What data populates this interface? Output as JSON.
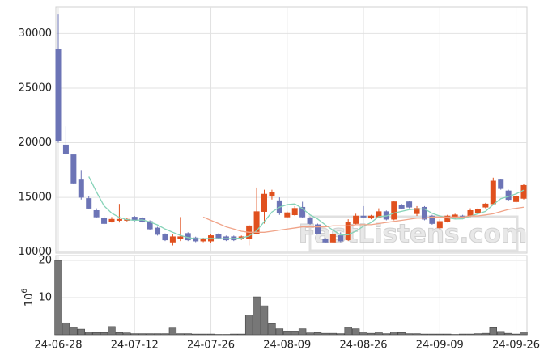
{
  "chart_data": [
    {
      "type": "candlestick",
      "watermark": "FastListens.com",
      "ylim": [
        9900,
        32400
      ],
      "yticks": [
        10000,
        15000,
        20000,
        25000,
        30000
      ],
      "grid": true,
      "up_color": "#e0501e",
      "down_color": "#6c74b6",
      "open": [
        28600,
        19800,
        18900,
        16600,
        14900,
        13800,
        13100,
        12800,
        12900,
        12900,
        13200,
        13100,
        12800,
        12200,
        11600,
        10900,
        11200,
        11700,
        11300,
        11000,
        11000,
        11600,
        11400,
        11400,
        11200,
        11200,
        11700,
        13700,
        15100,
        14700,
        13200,
        13400,
        14100,
        13100,
        12500,
        11200,
        10900,
        11500,
        11100,
        12600,
        13300,
        13100,
        13200,
        13700,
        13000,
        14300,
        14600,
        13500,
        14100,
        13300,
        12200,
        12800,
        13100,
        13300,
        13300,
        13600,
        14100,
        14400,
        16600,
        15600,
        14600,
        14900
      ],
      "high": [
        31800,
        21500,
        18900,
        17500,
        15100,
        14000,
        13300,
        13200,
        14400,
        13100,
        13300,
        13200,
        12900,
        12300,
        11700,
        11600,
        13200,
        11800,
        11400,
        11300,
        11600,
        11700,
        11500,
        11500,
        11500,
        12500,
        15900,
        15700,
        15700,
        15000,
        13700,
        14200,
        14600,
        13200,
        12600,
        11300,
        11700,
        11800,
        13000,
        13500,
        14200,
        13400,
        14000,
        13800,
        14700,
        14400,
        14700,
        14200,
        14200,
        13400,
        13000,
        13400,
        13500,
        13400,
        14000,
        14100,
        14500,
        16800,
        16700,
        15700,
        15300,
        16200
      ],
      "low": [
        20000,
        18900,
        16200,
        14800,
        13900,
        13100,
        12500,
        12700,
        12700,
        12800,
        12800,
        12700,
        12000,
        11500,
        11000,
        10600,
        11000,
        11000,
        10900,
        10900,
        10800,
        11200,
        11000,
        11000,
        11100,
        10600,
        11600,
        12600,
        14800,
        13400,
        13100,
        13300,
        13100,
        12500,
        11600,
        10800,
        10800,
        10900,
        11000,
        12500,
        13100,
        13000,
        13100,
        12900,
        12900,
        13900,
        14000,
        13300,
        12900,
        12500,
        12000,
        12700,
        13000,
        13000,
        13200,
        13500,
        14000,
        14300,
        15700,
        14700,
        14500,
        14800
      ],
      "close": [
        20200,
        19000,
        16300,
        15000,
        14000,
        13200,
        12600,
        13000,
        13000,
        13000,
        12900,
        12800,
        12100,
        11600,
        11100,
        11400,
        11400,
        11100,
        11000,
        11200,
        11500,
        11300,
        11100,
        11100,
        11400,
        12400,
        13700,
        15300,
        15500,
        13600,
        13600,
        14000,
        13200,
        12600,
        11700,
        10900,
        11600,
        11000,
        12700,
        13300,
        13200,
        13300,
        13700,
        13000,
        14600,
        14000,
        14100,
        14000,
        13000,
        12600,
        12800,
        13300,
        13400,
        13100,
        13800,
        13900,
        14400,
        16500,
        15800,
        14800,
        15100,
        16100
      ],
      "series": [
        {
          "color": "#86d3b8",
          "values": [
            null,
            null,
            null,
            null,
            16900,
            15500,
            14220,
            13560,
            13160,
            12960,
            12900,
            12940,
            12760,
            12480,
            12100,
            11800,
            11520,
            11320,
            11200,
            11220,
            11240,
            11220,
            11220,
            11240,
            11280,
            11460,
            11940,
            12780,
            13660,
            14100,
            14340,
            14400,
            13980,
            13400,
            13020,
            12480,
            12000,
            11560,
            11580,
            11900,
            12360,
            12700,
            13240,
            13300,
            13560,
            13720,
            13880,
            13940,
            13940,
            13540,
            13300,
            13140,
            13020,
            13040,
            13280,
            13500,
            13720,
            14340,
            14880,
            15080,
            15320,
            15660
          ]
        },
        {
          "color": "#f0a388",
          "values": [
            null,
            null,
            null,
            null,
            null,
            null,
            null,
            null,
            null,
            null,
            null,
            null,
            null,
            null,
            null,
            null,
            null,
            null,
            null,
            13200,
            12900,
            12600,
            12300,
            12100,
            11900,
            11800,
            11800,
            11800,
            11900,
            12000,
            12100,
            12200,
            12300,
            12300,
            12300,
            12300,
            12400,
            12400,
            12400,
            12500,
            12500,
            12500,
            12600,
            12700,
            12800,
            12900,
            13000,
            13100,
            13100,
            13200,
            13200,
            13200,
            13200,
            13200,
            13300,
            13300,
            13400,
            13500,
            13700,
            13900,
            14000,
            14100
          ]
        }
      ]
    },
    {
      "type": "bar",
      "ylabel": "10",
      "ylabel_exponent": "6",
      "color": "#777777",
      "ylim": [
        0,
        21.3
      ],
      "yticks": [
        10,
        20
      ],
      "grid": true,
      "categories": [
        "24-06-28",
        null,
        null,
        null,
        null,
        null,
        null,
        null,
        null,
        null,
        "24-07-12",
        null,
        null,
        null,
        null,
        null,
        null,
        null,
        null,
        null,
        "24-07-26",
        null,
        null,
        null,
        null,
        null,
        null,
        null,
        null,
        null,
        "24-08-09",
        null,
        null,
        null,
        null,
        null,
        null,
        null,
        null,
        null,
        "24-08-26",
        null,
        null,
        null,
        null,
        null,
        null,
        null,
        null,
        null,
        "24-09-09",
        null,
        null,
        null,
        null,
        null,
        null,
        null,
        null,
        null,
        "24-09-26",
        null
      ],
      "values": [
        20,
        3.2,
        2.0,
        1.5,
        0.7,
        0.6,
        0.6,
        2.2,
        0.6,
        0.5,
        0.3,
        0.3,
        0.3,
        0.3,
        0.3,
        1.8,
        0.3,
        0.3,
        0.2,
        0.2,
        0.2,
        0.1,
        0.1,
        0.2,
        0.2,
        5.3,
        10.2,
        7.8,
        3.0,
        1.6,
        1.0,
        1.0,
        1.6,
        0.5,
        0.6,
        0.4,
        0.4,
        0.3,
        2.0,
        1.6,
        0.8,
        0.4,
        0.8,
        0.3,
        0.8,
        0.6,
        0.3,
        0.3,
        0.2,
        0.2,
        0.2,
        0.2,
        0.1,
        0.2,
        0.2,
        0.3,
        0.4,
        1.9,
        0.9,
        0.4,
        0.2,
        0.8
      ]
    }
  ]
}
